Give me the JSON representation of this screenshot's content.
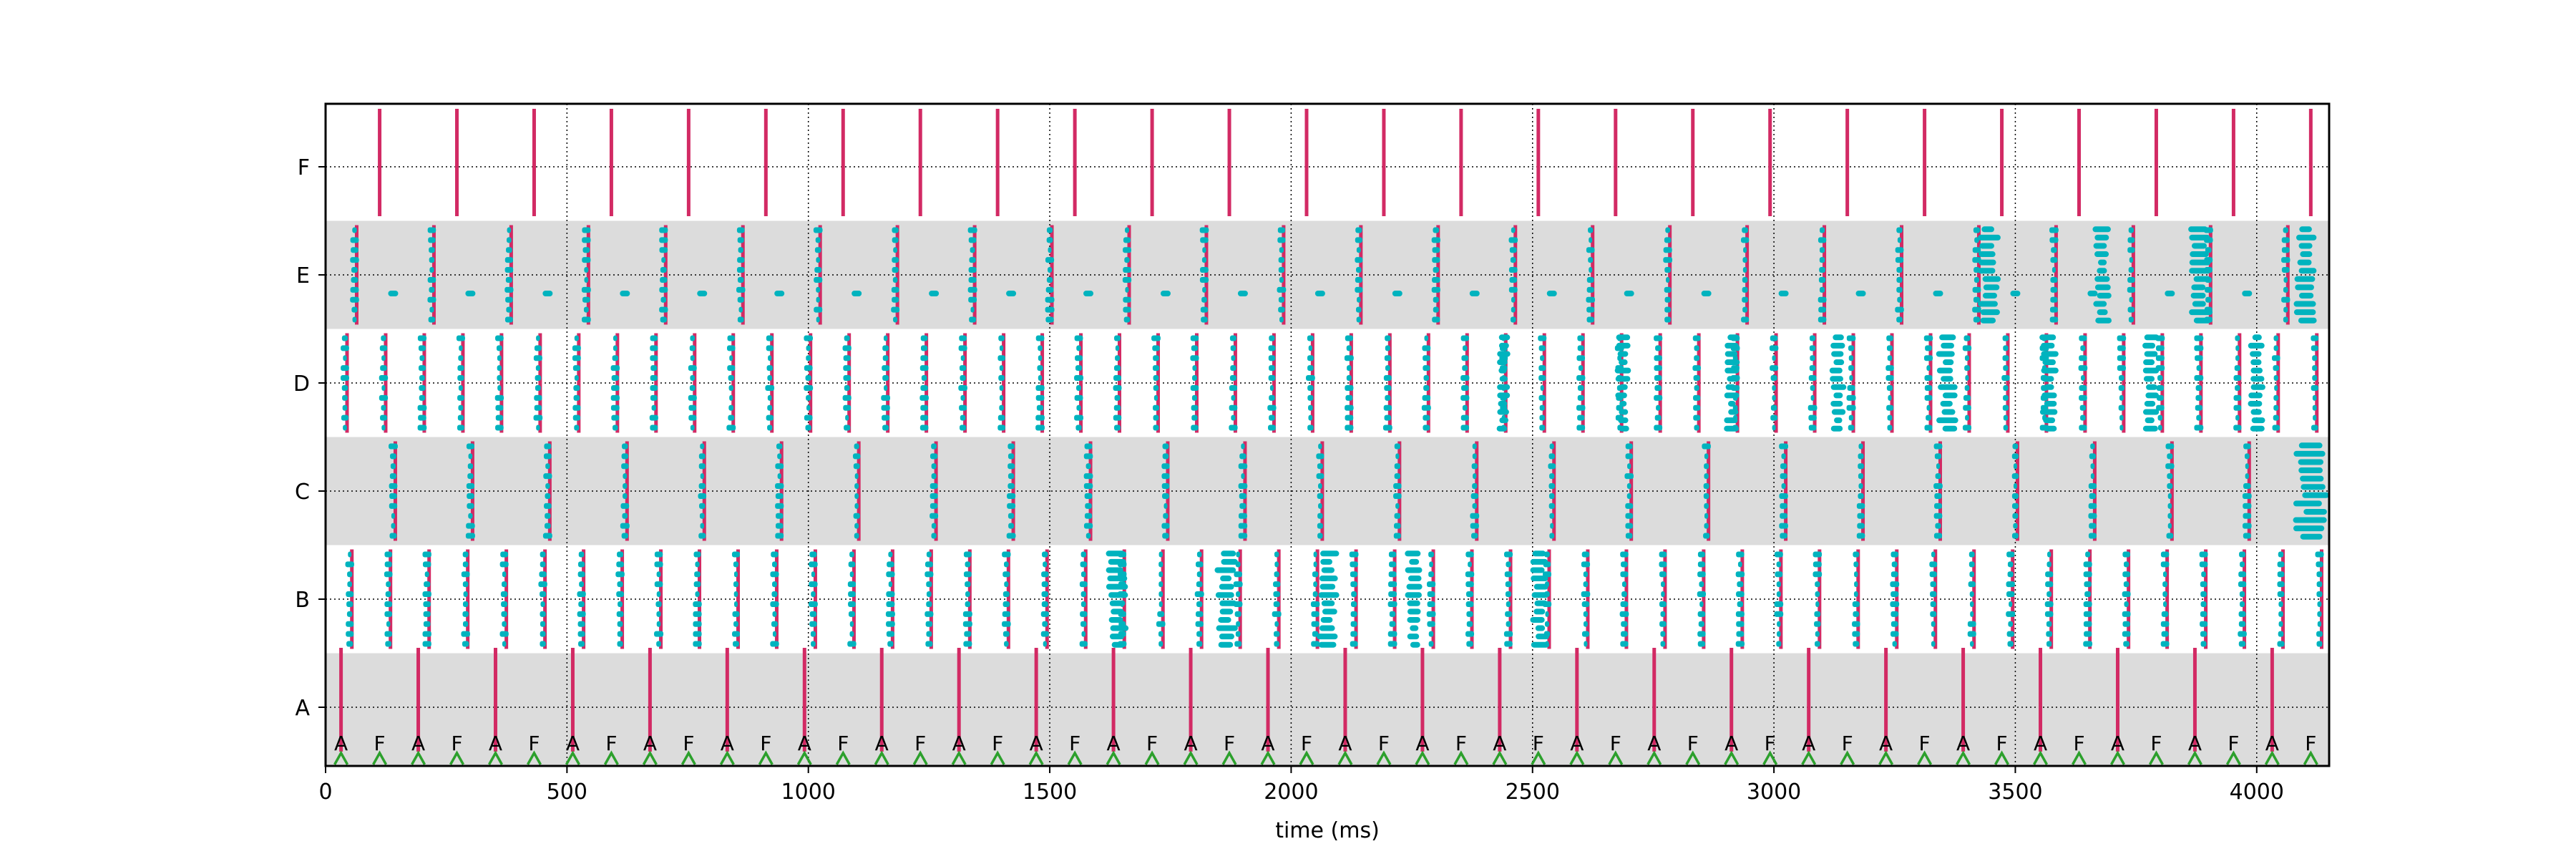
{
  "chart_data": {
    "type": "scatter",
    "title": "",
    "xlabel": "time (ms)",
    "ylabel": "",
    "xlim": [
      0,
      4150
    ],
    "xticks": [
      0,
      500,
      1000,
      1500,
      2000,
      2500,
      3000,
      3500,
      4000
    ],
    "ycategories": [
      "A",
      "B",
      "C",
      "D",
      "E",
      "F"
    ],
    "grid": true,
    "legend": "none",
    "colors": {
      "band": "#dcdcdc",
      "spike_cyan": "#00b3be",
      "spike_magenta": "#d22a64",
      "tick_line": "#d22a64",
      "marker_green": "#2ca02c",
      "marker_label": "#000000"
    },
    "A_marker_times": [
      32,
      192,
      352,
      512,
      672,
      832,
      992,
      1152,
      1312,
      1472,
      1632,
      1792,
      1952,
      2112,
      2272,
      2432,
      2592,
      2752,
      2912,
      3072,
      3232,
      3392,
      3552,
      3712,
      3872,
      4032
    ],
    "F_marker_times": [
      112,
      272,
      432,
      592,
      752,
      912,
      1072,
      1232,
      1392,
      1552,
      1712,
      1872,
      2032,
      2192,
      2352,
      2512,
      2672,
      2832,
      2992,
      3152,
      3312,
      3472,
      3632,
      3792,
      3952,
      4112
    ],
    "marker_labels": {
      "A": "A",
      "F": "F"
    },
    "green_marker_times": [
      32,
      112,
      192,
      272,
      352,
      432,
      512,
      592,
      672,
      752,
      832,
      912,
      992,
      1072,
      1152,
      1232,
      1312,
      1392,
      1472,
      1552,
      1632,
      1712,
      1792,
      1872,
      1952,
      2032,
      2112,
      2192,
      2272,
      2352,
      2432,
      2512,
      2592,
      2672,
      2752,
      2832,
      2912,
      2992,
      3072,
      3152,
      3232,
      3312,
      3392,
      3472,
      3552,
      3632,
      3712,
      3792,
      3872,
      3952,
      4032,
      4112
    ],
    "A_spike_times": [
      32,
      192,
      352,
      512,
      672,
      832,
      992,
      1152,
      1312,
      1472,
      1632,
      1792,
      1952,
      2112,
      2272,
      2432,
      2592,
      2752,
      2912,
      3072,
      3232,
      3392,
      3552,
      3712,
      3872,
      4032
    ],
    "F_spike_times": [
      112,
      272,
      432,
      592,
      752,
      912,
      1072,
      1232,
      1392,
      1552,
      1712,
      1872,
      2032,
      2192,
      2352,
      2512,
      2672,
      2832,
      2992,
      3152,
      3312,
      3472,
      3632,
      3792,
      3952,
      4112
    ],
    "B_volley_times": [
      50,
      130,
      210,
      290,
      370,
      450,
      530,
      610,
      690,
      770,
      850,
      930,
      1010,
      1090,
      1170,
      1250,
      1330,
      1410,
      1490,
      1570,
      1650,
      1730,
      1810,
      1890,
      1970,
      2050,
      2130,
      2210,
      2290,
      2370,
      2450,
      2530,
      2610,
      2690,
      2770,
      2850,
      2930,
      3010,
      3090,
      3170,
      3250,
      3330,
      3410,
      3490,
      3570,
      3650,
      3730,
      3810,
      3890,
      3970,
      4050,
      4130
    ],
    "B_burst_ranges": [
      [
        1615,
        1665
      ],
      [
        1840,
        1890
      ],
      [
        2050,
        2100
      ],
      [
        2235,
        2275
      ],
      [
        2495,
        2535
      ]
    ],
    "C_volley_times": [
      140,
      300,
      460,
      620,
      780,
      940,
      1100,
      1260,
      1420,
      1580,
      1740,
      1900,
      2060,
      2220,
      2380,
      2540,
      2700,
      2860,
      3020,
      3180,
      3340,
      3500,
      3660,
      3820,
      3980
    ],
    "C_burst_ranges": [
      [
        4075,
        4150
      ]
    ],
    "D_volley_times": [
      40,
      120,
      200,
      280,
      360,
      440,
      520,
      600,
      680,
      760,
      840,
      920,
      1000,
      1080,
      1160,
      1240,
      1320,
      1400,
      1480,
      1560,
      1640,
      1720,
      1800,
      1880,
      1960,
      2040,
      2120,
      2200,
      2280,
      2360,
      2440,
      2520,
      2600,
      2680,
      2760,
      2840,
      2920,
      3000,
      3080,
      3160,
      3240,
      3320,
      3400,
      3480,
      3560,
      3640,
      3720,
      3800,
      3880,
      3960,
      4040,
      4120
    ],
    "D_burst_ranges": [
      [
        2425,
        2455
      ],
      [
        2670,
        2705
      ],
      [
        2895,
        2930
      ],
      [
        3115,
        3150
      ],
      [
        3335,
        3385
      ],
      [
        3550,
        3590
      ],
      [
        3760,
        3800
      ],
      [
        3980,
        4020
      ]
    ],
    "E_volley_times": [
      60,
      220,
      380,
      540,
      700,
      860,
      1020,
      1180,
      1340,
      1500,
      1660,
      1820,
      1980,
      2140,
      2300,
      2460,
      2620,
      2780,
      2940,
      3100,
      3260,
      3420,
      3580,
      3740,
      3900,
      4060
    ],
    "E_burst_ranges": [
      [
        3420,
        3470
      ],
      [
        3660,
        3700
      ],
      [
        3855,
        3910
      ],
      [
        4075,
        4125
      ]
    ]
  }
}
